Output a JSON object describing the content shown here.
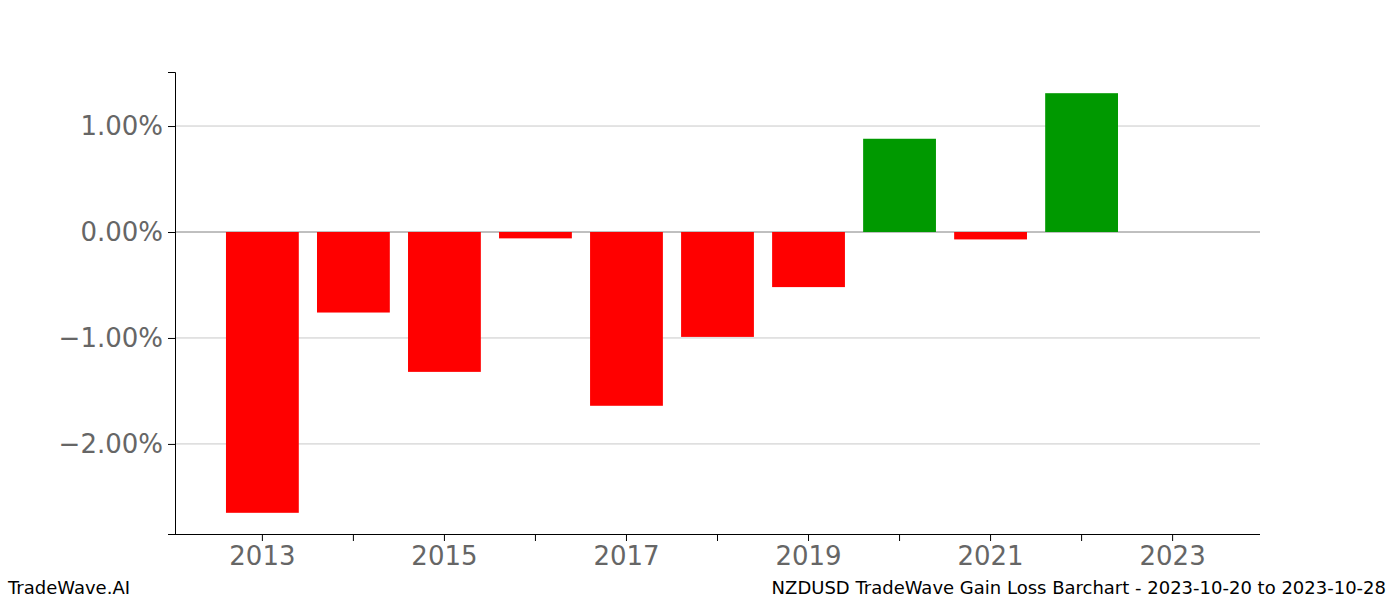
{
  "chart_data": {
    "type": "bar",
    "title": "NZDUSD TradeWave Gain Loss Barchart - 2023-10-20 to 2023-10-28",
    "annotations": [
      "TradeWave.AI"
    ],
    "categories": [
      "2013",
      null,
      "2015",
      null,
      "2017",
      null,
      "2019",
      null,
      "2021",
      null,
      "2023"
    ],
    "values": [
      -2.65,
      -0.76,
      -1.32,
      -0.06,
      -1.64,
      -0.99,
      -0.52,
      0.88,
      -0.07,
      1.31,
      0
    ],
    "colors": [
      "#ff0000",
      "#ff0000",
      "#ff0000",
      "#ff0000",
      "#ff0000",
      "#ff0000",
      "#ff0000",
      "#009900",
      "#ff0000",
      "#009900",
      "#009900"
    ],
    "ylim": [
      -2.85,
      1.51
    ],
    "yticks": [
      {
        "value": -2,
        "label": "−2.00%"
      },
      {
        "value": -1,
        "label": "−1.00%"
      },
      {
        "value": 0,
        "label": "0.00%"
      },
      {
        "value": 1,
        "label": "1.00%"
      }
    ],
    "grid": true
  }
}
